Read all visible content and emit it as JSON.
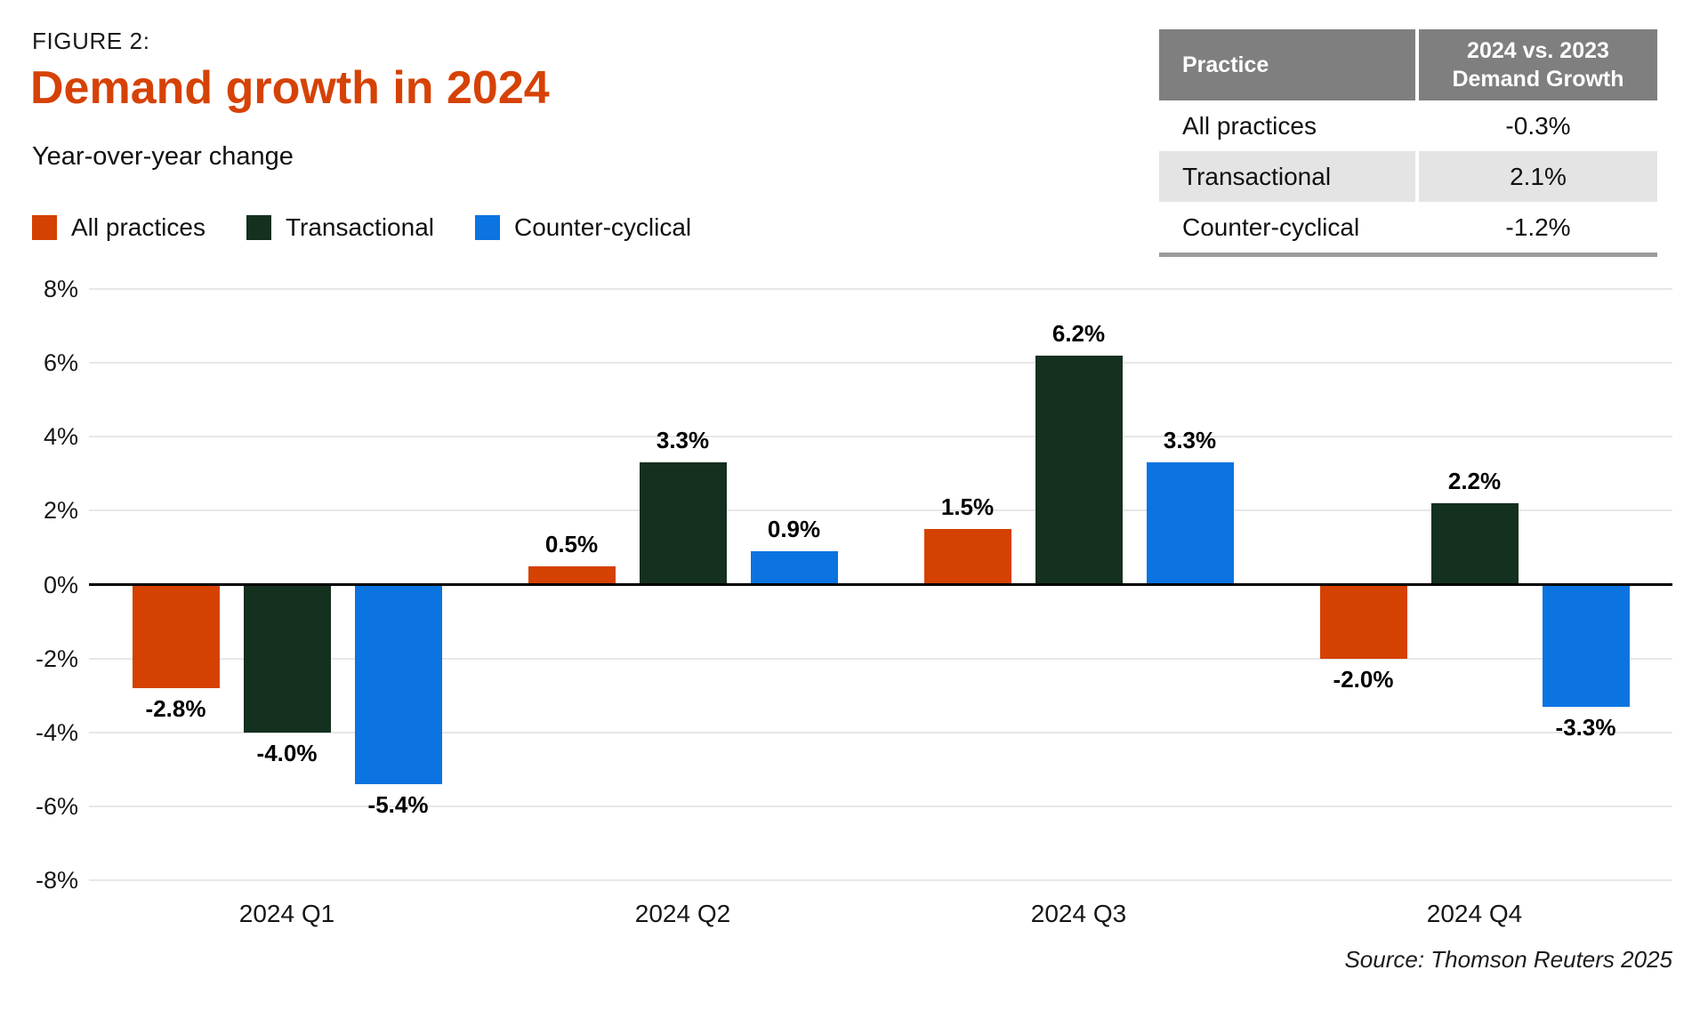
{
  "figure": {
    "label": "FIGURE 2:",
    "title": "Demand growth in 2024",
    "subtitle": "Year-over-year change",
    "source": "Source: Thomson Reuters 2025"
  },
  "colors": {
    "title": "#D64206",
    "all_practices": "#D54100",
    "transactional": "#14301F",
    "counter_cyclical": "#0B74E0",
    "table_header_bg": "#7F7F7F",
    "table_row_stripe": "#E4E4E4",
    "table_bottom_border": "#9B9B9B",
    "gridline": "#E7E7E7",
    "zero_line": "#000000"
  },
  "legend": [
    {
      "label": "All practices",
      "color": "#D54100"
    },
    {
      "label": "Transactional",
      "color": "#14301F"
    },
    {
      "label": "Counter-cyclical",
      "color": "#0B74E0"
    }
  ],
  "summary_table": {
    "header": {
      "col1": "Practice",
      "col2_line1": "2024 vs. 2023",
      "col2_line2": "Demand Growth"
    },
    "rows": [
      {
        "practice": "All practices",
        "value": "-0.3%"
      },
      {
        "practice": "Transactional",
        "value": "2.1%"
      },
      {
        "practice": "Counter-cyclical",
        "value": "-1.2%"
      }
    ]
  },
  "chart_data": {
    "type": "bar",
    "title": "Demand growth in 2024",
    "subtitle": "Year-over-year change",
    "categories": [
      "2024 Q1",
      "2024 Q2",
      "2024 Q3",
      "2024 Q4"
    ],
    "series": [
      {
        "name": "All practices",
        "color": "#D54100",
        "values": [
          -2.8,
          0.5,
          1.5,
          -2.0
        ],
        "labels": [
          "-2.8%",
          "0.5%",
          "1.5%",
          "-2.0%"
        ]
      },
      {
        "name": "Transactional",
        "color": "#14301F",
        "values": [
          -4.0,
          3.3,
          6.2,
          2.2
        ],
        "labels": [
          "-4.0%",
          "3.3%",
          "6.2%",
          "2.2%"
        ]
      },
      {
        "name": "Counter-cyclical",
        "color": "#0B74E0",
        "values": [
          -5.4,
          0.9,
          3.3,
          -3.3
        ],
        "labels": [
          "-5.4%",
          "0.9%",
          "3.3%",
          "-3.3%"
        ]
      }
    ],
    "xlabel": "",
    "ylabel": "",
    "ylim": [
      -8,
      8
    ],
    "yticks": [
      {
        "value": 8,
        "label": "8%"
      },
      {
        "value": 6,
        "label": "6%"
      },
      {
        "value": 4,
        "label": "4%"
      },
      {
        "value": 2,
        "label": "2%"
      },
      {
        "value": 0,
        "label": "0%"
      },
      {
        "value": -2,
        "label": "-2%"
      },
      {
        "value": -4,
        "label": "-4%"
      },
      {
        "value": -6,
        "label": "-6%"
      },
      {
        "value": -8,
        "label": "-8%"
      }
    ],
    "grid": true,
    "legend_position": "top-left"
  }
}
